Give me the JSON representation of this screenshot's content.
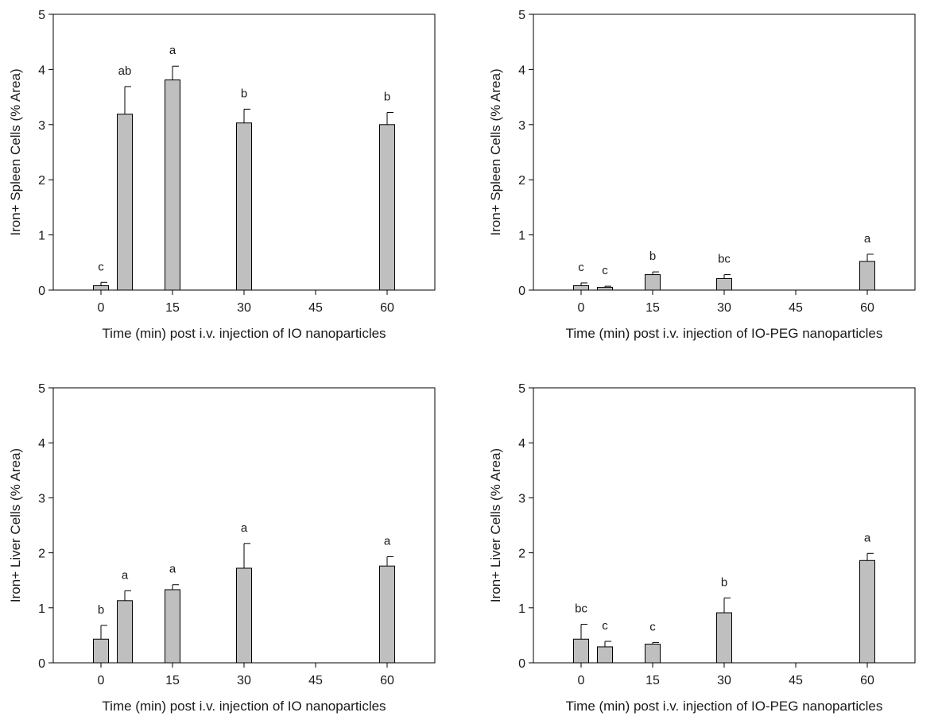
{
  "chart_data": [
    {
      "type": "bar",
      "panel": "top-left",
      "xlabel": "Time (min) post  i.v. injection of IO nanoparticles",
      "ylabel": "Iron+ Spleen Cells (% Area)",
      "x": [
        0,
        5,
        15,
        30,
        60
      ],
      "values": [
        0.08,
        3.19,
        3.81,
        3.03,
        3.0
      ],
      "errors": [
        0.06,
        0.5,
        0.25,
        0.25,
        0.22
      ],
      "sig_labels": [
        "c",
        "ab",
        "a",
        "b",
        "b"
      ],
      "xlim": [
        -10,
        70
      ],
      "xticks": [
        0,
        15,
        30,
        45,
        60
      ],
      "ylim": [
        0,
        5
      ],
      "yticks": [
        0,
        1,
        2,
        3,
        4,
        5
      ],
      "grid": false,
      "bar_color": "#bfbfbf"
    },
    {
      "type": "bar",
      "panel": "top-right",
      "xlabel": "Time (min) post  i.v. injection of IO-PEG nanoparticles",
      "ylabel": "Iron+ Spleen Cells (% Area)",
      "x": [
        0,
        5,
        15,
        30,
        60
      ],
      "values": [
        0.08,
        0.05,
        0.28,
        0.21,
        0.52
      ],
      "errors": [
        0.05,
        0.02,
        0.05,
        0.07,
        0.13
      ],
      "sig_labels": [
        "c",
        "c",
        "b",
        "bc",
        "a"
      ],
      "xlim": [
        -10,
        70
      ],
      "xticks": [
        0,
        15,
        30,
        45,
        60
      ],
      "ylim": [
        0,
        5
      ],
      "yticks": [
        0,
        1,
        2,
        3,
        4,
        5
      ],
      "grid": false,
      "bar_color": "#bfbfbf"
    },
    {
      "type": "bar",
      "panel": "bottom-left",
      "xlabel": "Time (min) post  i.v. injection of IO nanoparticles",
      "ylabel": "Iron+ Liver Cells (% Area)",
      "x": [
        0,
        5,
        15,
        30,
        60
      ],
      "values": [
        0.43,
        1.13,
        1.33,
        1.72,
        1.76
      ],
      "errors": [
        0.25,
        0.18,
        0.09,
        0.45,
        0.17
      ],
      "sig_labels": [
        "b",
        "a",
        "a",
        "a",
        "a"
      ],
      "xlim": [
        -10,
        70
      ],
      "xticks": [
        0,
        15,
        30,
        45,
        60
      ],
      "ylim": [
        0,
        5
      ],
      "yticks": [
        0,
        1,
        2,
        3,
        4,
        5
      ],
      "grid": false,
      "bar_color": "#bfbfbf"
    },
    {
      "type": "bar",
      "panel": "bottom-right",
      "xlabel": "Time (min) post  i.v. injection of IO-PEG nanoparticles",
      "ylabel": "Iron+ Liver Cells (% Area)",
      "x": [
        0,
        5,
        15,
        30,
        60
      ],
      "values": [
        0.43,
        0.29,
        0.34,
        0.91,
        1.86
      ],
      "errors": [
        0.27,
        0.1,
        0.03,
        0.27,
        0.13
      ],
      "sig_labels": [
        "bc",
        "c",
        "c",
        "b",
        "a"
      ],
      "xlim": [
        -10,
        70
      ],
      "xticks": [
        0,
        15,
        30,
        45,
        60
      ],
      "ylim": [
        0,
        5
      ],
      "yticks": [
        0,
        1,
        2,
        3,
        4,
        5
      ],
      "grid": false,
      "bar_color": "#bfbfbf"
    }
  ]
}
